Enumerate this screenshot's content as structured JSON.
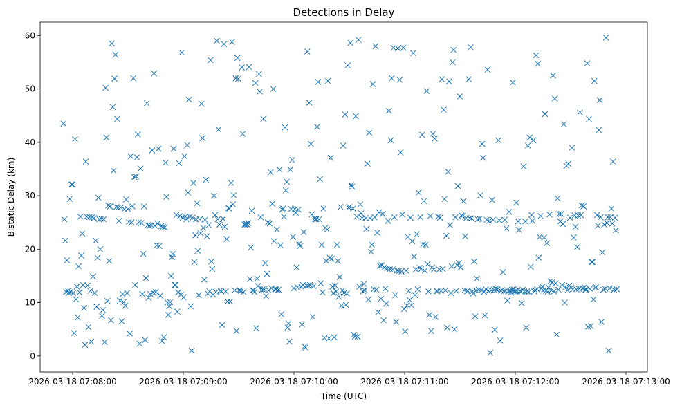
{
  "chart_data": {
    "type": "scatter",
    "title": "Detections in Delay",
    "xlabel": "Time (UTC)",
    "ylabel": "Bistatic Delay (km)",
    "x_tick_labels": [
      "2026-03-18 07:08:00",
      "2026-03-18 07:09:00",
      "2026-03-18 07:10:00",
      "2026-03-18 07:11:00",
      "2026-03-18 07:12:00",
      "2026-03-18 07:13:00"
    ],
    "y_ticks": [
      0,
      10,
      20,
      30,
      40,
      50,
      60
    ],
    "marker": "x",
    "color": "#1f77b4",
    "grid": false,
    "legend": "none",
    "series": [
      {
        "x_time_start": "2026-03-18 07:07:55",
        "x_time_end": "2026-03-18 07:12:55",
        "point_order": "time-sorted",
        "values_km": [
          43.5,
          25.6,
          21.6,
          12.0,
          17.9,
          12.2,
          11.8,
          29.4,
          12.0,
          32.1,
          32.1,
          11.8,
          4.3,
          40.6,
          10.6,
          13.0,
          7.2,
          16.8,
          11.9,
          26.1,
          18.8,
          22.9,
          13.3,
          9.0,
          2.1,
          36.4,
          26.1,
          13.2,
          5.4,
          26.0,
          12.2,
          2.7,
          26.0,
          14.9,
          25.8,
          11.8,
          21.6,
          9.2,
          18.4,
          29.6,
          25.6,
          20.0,
          25.7,
          7.5,
          8.6,
          25.6,
          2.6,
          50.2,
          40.9,
          10.3,
          28.2,
          17.8,
          28.0,
          6.7,
          58.5,
          46.6,
          34.7,
          51.9,
          56.4,
          27.9,
          44.4,
          27.8,
          25.3,
          10.4,
          27.8,
          6.5,
          11.6,
          10.1,
          27.5,
          9.4,
          29.3,
          11.8,
          27.5,
          25.1,
          4.2,
          37.4,
          25.0,
          28.0,
          52.0,
          33.5,
          13.3,
          33.6,
          37.2,
          41.5,
          25.0,
          2.3,
          35.1,
          24.9,
          11.6,
          19.1,
          28.0,
          3.0,
          14.6,
          47.3,
          24.5,
          10.9,
          24.4,
          11.6,
          24.5,
          38.5,
          11.9,
          52.9,
          24.4,
          12.0,
          20.7,
          24.8,
          38.8,
          20.6,
          11.3,
          24.3,
          2.8,
          24.2,
          3.5,
          24.1,
          36.2,
          29.8,
          10.0,
          7.7,
          9.3,
          10.1,
          15.0,
          18.5,
          19.1,
          38.8,
          13.3,
          13.3,
          26.4,
          8.3,
          11.9,
          36.1,
          26.2,
          11.5,
          56.8,
          25.9,
          11.0,
          37.4,
          26.1,
          25.6,
          39.5,
          30.6,
          48.0,
          26.1,
          9.3,
          1.0,
          25.9,
          32.4,
          17.6,
          22.6,
          25.6,
          28.6,
          19.7,
          11.4,
          25.6,
          23.0,
          47.2,
          40.8,
          24.0,
          14.3,
          25.5,
          33.0,
          22.4,
          11.7,
          24.5,
          12.1,
          55.4,
          17.7,
          16.3,
          11.5,
          30.0,
          26.4,
          12.0,
          59.0,
          25.6,
          42.4,
          24.6,
          12.3,
          12.1,
          5.8,
          25.7,
          58.4,
          24.2,
          12.1,
          21.9,
          10.2,
          27.7,
          27.6,
          10.2,
          32.4,
          58.8,
          28.4,
          30.1,
          12.3,
          52.0,
          4.7,
          55.8,
          51.9,
          12.3,
          12.3,
          12.2,
          54.0,
          41.6,
          12.0,
          24.6,
          24.6,
          24.7,
          24.6,
          24.9,
          54.1,
          14.4,
          20.3,
          27.2,
          12.3,
          12.3,
          12.0,
          51.1,
          5.2,
          14.5,
          13.1,
          52.8,
          49.5,
          26.0,
          12.3,
          12.5,
          44.4,
          12.5,
          17.4,
          11.2,
          15.4,
          25.0,
          12.3,
          24.8,
          34.4,
          12.7,
          28.5,
          50.0,
          21.5,
          12.5,
          12.5,
          23.7,
          12.3,
          12.4,
          34.9,
          20.7,
          7.8,
          27.4,
          27.6,
          26.1,
          42.8,
          31.0,
          32.6,
          5.3,
          6.1,
          2.7,
          34.9,
          27.5,
          36.7,
          22.3,
          12.7,
          27.5,
          26.8,
          16.6,
          12.9,
          27.4,
          21.0,
          20.6,
          13.0,
          5.9,
          13.3,
          23.2,
          1.8,
          1.6,
          13.2,
          57.0,
          13.2,
          47.4,
          13.3,
          39.7,
          26.5,
          7.3,
          13.1,
          25.7,
          25.6,
          25.6,
          42.9,
          51.3,
          25.6,
          33.1,
          13.6,
          20.8,
          11.9,
          27.6,
          3.4,
          24.0,
          17.8,
          23.7,
          51.5,
          3.3,
          18.4,
          37.1,
          18.2,
          13.0,
          11.8,
          3.5,
          13.2,
          12.1,
          20.8,
          17.8,
          11.1,
          14.8,
          27.9,
          9.4,
          12.3,
          39.4,
          11.8,
          45.2,
          9.6,
          11.7,
          54.4,
          27.8,
          27.9,
          58.6,
          32.0,
          31.7,
          27.6,
          4.0,
          3.6,
          44.9,
          26.1,
          3.6,
          59.2,
          13.0,
          28.4,
          26.7,
          25.8,
          12.1,
          13.5,
          12.3,
          25.8,
          23.8,
          36.0,
          10.6,
          41.8,
          25.8,
          19.5,
          20.8,
          50.9,
          12.5,
          26.0,
          58.0,
          12.4,
          23.1,
          8.2,
          26.9,
          16.9,
          10.7,
          17.0,
          26.6,
          6.7,
          16.6,
          12.6,
          9.8,
          16.4,
          25.3,
          45.9,
          16.3,
          40.4,
          52.0,
          16.2,
          57.7,
          26.0,
          11.4,
          6.4,
          16.0,
          57.6,
          15.9,
          51.7,
          38.1,
          15.8,
          26.5,
          57.7,
          8.8,
          4.6,
          16.0,
          9.5,
          22.3,
          12.2,
          10.5,
          25.9,
          9.5,
          21.5,
          56.7,
          18.6,
          11.4,
          16.2,
          22.8,
          12.5,
          30.6,
          16.5,
          26.0,
          16.3,
          41.4,
          20.9,
          29.0,
          16.0,
          20.8,
          49.6,
          17.2,
          12.1,
          7.7,
          26.2,
          4.7,
          16.6,
          41.6,
          16.2,
          40.7,
          7.3,
          12.2,
          12.1,
          26.1,
          16.2,
          25.9,
          12.2,
          51.8,
          16.3,
          46.1,
          29.4,
          12.3,
          22.5,
          5.3,
          34.5,
          51.4,
          24.5,
          11.8,
          16.8,
          55.0,
          57.3,
          5.0,
          26.0,
          12.2,
          17.0,
          31.8,
          17.4,
          48.6,
          16.6,
          26.3,
          26.2,
          29.0,
          12.3,
          22.4,
          25.8,
          12.1,
          12.2,
          51.8,
          25.8,
          57.8,
          25.8,
          12.1,
          11.7,
          17.7,
          7.4,
          12.3,
          14.5,
          25.6,
          12.4,
          25.7,
          30.1,
          12.3,
          39.7,
          37.1,
          12.0,
          7.6,
          12.5,
          25.5,
          53.6,
          12.2,
          25.3,
          0.6,
          12.3,
          29.2,
          25.5,
          12.4,
          4.9,
          12.6,
          12.4,
          12.5,
          40.4,
          25.4,
          2.9,
          12.2,
          12.4,
          15.7,
          12.1,
          25.5,
          12.2,
          23.9,
          10.4,
          12.1,
          27.0,
          12.3,
          11.9,
          12.4,
          51.2,
          12.5,
          12.1,
          12.1,
          28.7,
          12.1,
          25.2,
          23.6,
          12.2,
          12.1,
          9.9,
          12.4,
          35.5,
          12.1,
          25.2,
          5.3,
          12.1,
          39.4,
          12.0,
          40.9,
          16.7,
          26.4,
          25.3,
          40.4,
          12.1,
          12.3,
          56.3,
          12.5,
          54.7,
          18.4,
          22.3,
          26.2,
          12.7,
          13.0,
          12.2,
          22.2,
          45.3,
          12.2,
          21.1,
          12.0,
          12.8,
          26.5,
          14.0,
          12.3,
          13.8,
          52.5,
          12.1,
          48.2,
          13.6,
          4.0,
          29.5,
          12.4,
          26.6,
          25.2,
          26.6,
          13.3,
          24.7,
          43.4,
          10.0,
          12.9,
          35.6,
          12.3,
          36.0,
          13.2,
          25.9,
          12.8,
          39.0,
          12.5,
          22.2,
          26.3,
          24.2,
          12.5,
          20.4,
          26.3,
          12.6,
          45.6,
          26.4,
          28.2,
          12.7,
          28.0,
          12.9,
          12.4,
          12.4,
          54.8,
          5.5,
          44.4,
          12.6,
          5.6,
          17.6,
          17.6,
          10.6,
          51.5,
          12.8,
          12.9,
          26.4,
          24.4,
          42.3,
          47.9,
          26.0,
          6.4,
          19.4,
          12.4,
          24.6,
          12.6,
          59.6,
          24.9,
          26.0,
          1.0,
          12.7,
          26.0,
          27.6,
          24.8,
          36.4,
          12.4,
          25.9,
          23.5,
          12.5
        ]
      }
    ]
  }
}
